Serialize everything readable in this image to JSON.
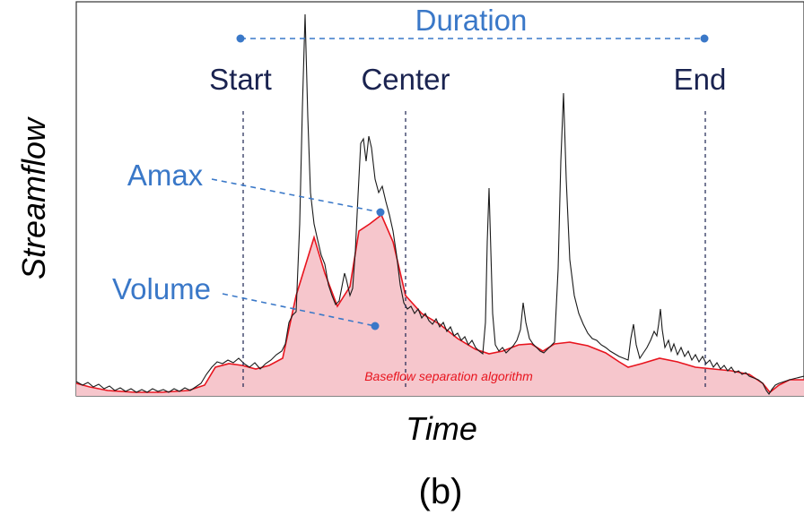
{
  "labels": {
    "duration": "Duration",
    "start": "Start",
    "center": "Center",
    "end": "End",
    "amax": "Amax",
    "volume": "Volume",
    "baseflow": "Baseflow separation algorithm",
    "ylabel": "Streamflow",
    "xlabel": "Time",
    "panel": "(b)"
  },
  "colors": {
    "hydrograph": "#1a1a1a",
    "baseflow_line": "#e8141e",
    "baseflow_fill": "#f6c6cc",
    "annotation_blue": "#3a78c8",
    "event_markers": "#1a2350"
  }
}
